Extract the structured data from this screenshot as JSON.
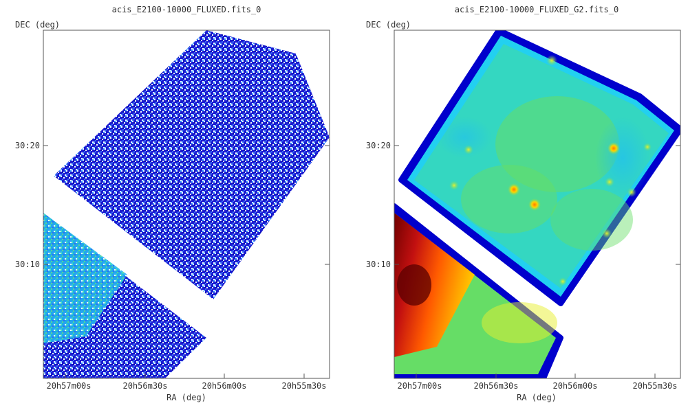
{
  "chart_data": [
    {
      "type": "heatmap",
      "title": "acis_E2100-10000_FLUXED.fits_0",
      "xlabel": "RA (deg)",
      "ylabel": "DEC (deg)",
      "x_ticks": [
        "20h57m00s",
        "20h56m30s",
        "20h56m00s",
        "20h55m30s"
      ],
      "y_ticks": [
        "30:20",
        "30:10"
      ],
      "colormap": [
        "#ffffff",
        "#1a1ad6",
        "#2f6fff",
        "#22c8ee",
        "#44e0a0",
        "#7ee07e"
      ],
      "grid": false
    },
    {
      "type": "heatmap",
      "title": "acis_E2100-10000_FLUXED_G2.fits_0",
      "xlabel": "RA (deg)",
      "ylabel": "DEC (deg)",
      "x_ticks": [
        "20h57m00s",
        "20h56m30s",
        "20h56m00s",
        "20h55m30s"
      ],
      "y_ticks": [
        "30:20",
        "30:10"
      ],
      "colormap": [
        "#0000cc",
        "#00c8ff",
        "#22e070",
        "#e8f020",
        "#ff7800",
        "#d01010",
        "#600000"
      ],
      "grid": false
    }
  ]
}
